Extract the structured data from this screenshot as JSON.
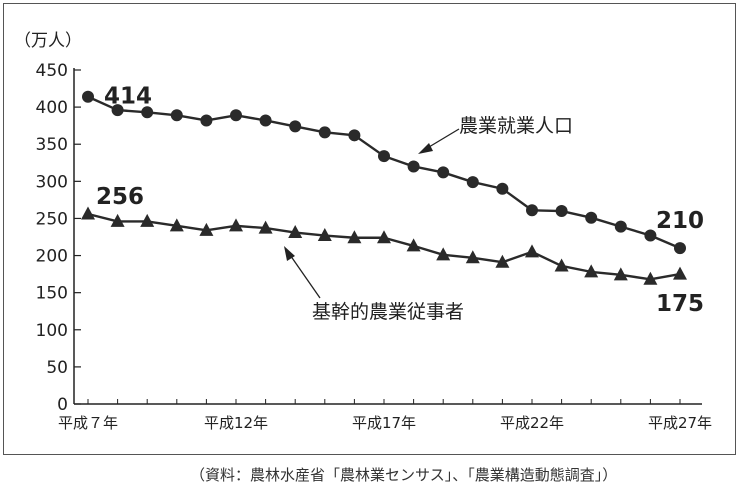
{
  "chart_data": {
    "type": "line",
    "ylabel": "（万人）",
    "ylim": [
      0,
      450
    ],
    "yticks": [
      0,
      50,
      100,
      150,
      200,
      250,
      300,
      350,
      400,
      450
    ],
    "x": [
      7,
      8,
      9,
      10,
      11,
      12,
      13,
      14,
      15,
      16,
      17,
      18,
      19,
      20,
      21,
      22,
      23,
      24,
      25,
      26,
      27
    ],
    "xticks": [
      {
        "x": 7,
        "label": "平成７年"
      },
      {
        "x": 12,
        "label": "平成12年"
      },
      {
        "x": 17,
        "label": "平成17年"
      },
      {
        "x": 22,
        "label": "平成22年"
      },
      {
        "x": 27,
        "label": "平成27年"
      }
    ],
    "series": [
      {
        "name": "農業就業人口",
        "marker": "circle",
        "values": [
          414,
          396,
          393,
          389,
          382,
          389,
          382,
          374,
          366,
          362,
          334,
          320,
          312,
          299,
          290,
          261,
          260,
          251,
          239,
          227,
          210
        ],
        "start_label": "414",
        "end_label": "210"
      },
      {
        "name": "基幹的農業従事者",
        "marker": "triangle",
        "values": [
          256,
          246,
          246,
          240,
          234,
          240,
          237,
          231,
          227,
          224,
          224,
          213,
          201,
          197,
          191,
          205,
          186,
          178,
          174,
          168,
          175
        ],
        "start_label": "256",
        "end_label": "175"
      }
    ],
    "colors": {
      "line": "#2a2a2a",
      "axis": "#222222"
    }
  },
  "source": "（資料：農林水産省「農林業センサス」、「農業構造動態調査」）"
}
